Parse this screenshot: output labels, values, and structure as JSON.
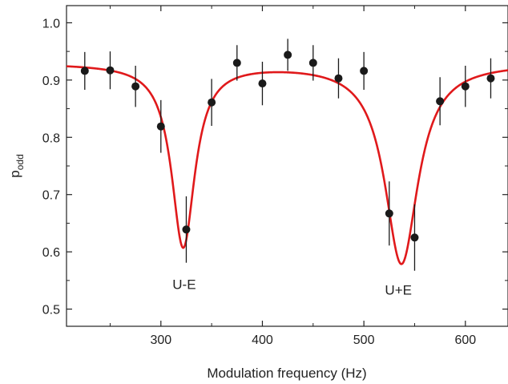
{
  "chart_data": {
    "type": "scatter",
    "xlabel": "Modulation frequency (Hz)",
    "ylabel_main": "p",
    "ylabel_sub": "odd",
    "xlim": [
      207,
      642
    ],
    "ylim": [
      0.47,
      1.03
    ],
    "xticks": [
      300,
      400,
      500,
      600
    ],
    "xtick_labels": [
      "300",
      "400",
      "500",
      "600"
    ],
    "yticks": [
      0.5,
      0.6,
      0.7,
      0.8,
      0.9,
      1.0
    ],
    "ytick_labels": [
      "0.5",
      "0.6",
      "0.7",
      "0.8",
      "0.9",
      "1.0"
    ],
    "grid": false,
    "points": {
      "color": "#1a1a1a",
      "x": [
        225,
        250,
        275,
        300,
        325,
        350,
        375,
        400,
        425,
        450,
        475,
        500,
        525,
        550,
        575,
        600,
        625
      ],
      "y": [
        0.916,
        0.917,
        0.889,
        0.819,
        0.639,
        0.861,
        0.93,
        0.894,
        0.944,
        0.93,
        0.903,
        0.916,
        0.667,
        0.625,
        0.863,
        0.889,
        0.903
      ],
      "err": [
        0.033,
        0.033,
        0.036,
        0.046,
        0.058,
        0.041,
        0.031,
        0.038,
        0.028,
        0.031,
        0.035,
        0.033,
        0.056,
        0.058,
        0.042,
        0.036,
        0.035
      ]
    },
    "fit": {
      "color": "#e0191b",
      "baseline": 0.93,
      "dips": [
        {
          "center": 322,
          "depth": 0.32,
          "width": 14
        },
        {
          "center": 537,
          "depth": 0.35,
          "width": 20
        }
      ]
    },
    "annotations": [
      {
        "text": "U-E",
        "x": 323,
        "y": 0.535
      },
      {
        "text": "U+E",
        "x": 534,
        "y": 0.525
      }
    ]
  }
}
